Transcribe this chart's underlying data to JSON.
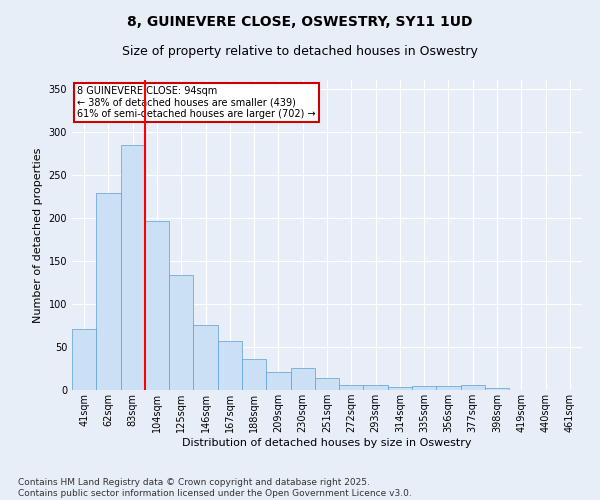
{
  "title": "8, GUINEVERE CLOSE, OSWESTRY, SY11 1UD",
  "subtitle": "Size of property relative to detached houses in Oswestry",
  "xlabel": "Distribution of detached houses by size in Oswestry",
  "ylabel": "Number of detached properties",
  "categories": [
    "41sqm",
    "62sqm",
    "83sqm",
    "104sqm",
    "125sqm",
    "146sqm",
    "167sqm",
    "188sqm",
    "209sqm",
    "230sqm",
    "251sqm",
    "272sqm",
    "293sqm",
    "314sqm",
    "335sqm",
    "356sqm",
    "377sqm",
    "398sqm",
    "419sqm",
    "440sqm",
    "461sqm"
  ],
  "values": [
    71,
    229,
    284,
    196,
    133,
    75,
    57,
    36,
    21,
    25,
    14,
    6,
    6,
    4,
    5,
    5,
    6,
    2,
    0,
    0,
    0
  ],
  "bar_color": "#cce0f5",
  "bar_edge_color": "#5a9fd4",
  "red_line_x": 2.5,
  "annotation_text": "8 GUINEVERE CLOSE: 94sqm\n← 38% of detached houses are smaller (439)\n61% of semi-detached houses are larger (702) →",
  "annotation_box_color": "#ffffff",
  "annotation_box_edge_color": "#cc0000",
  "ylim": [
    0,
    360
  ],
  "yticks": [
    0,
    50,
    100,
    150,
    200,
    250,
    300,
    350
  ],
  "footnote": "Contains HM Land Registry data © Crown copyright and database right 2025.\nContains public sector information licensed under the Open Government Licence v3.0.",
  "background_color": "#e8eef8",
  "plot_bg_color": "#e8eef8",
  "title_fontsize": 10,
  "subtitle_fontsize": 9,
  "axis_label_fontsize": 8,
  "tick_fontsize": 7,
  "footnote_fontsize": 6.5
}
